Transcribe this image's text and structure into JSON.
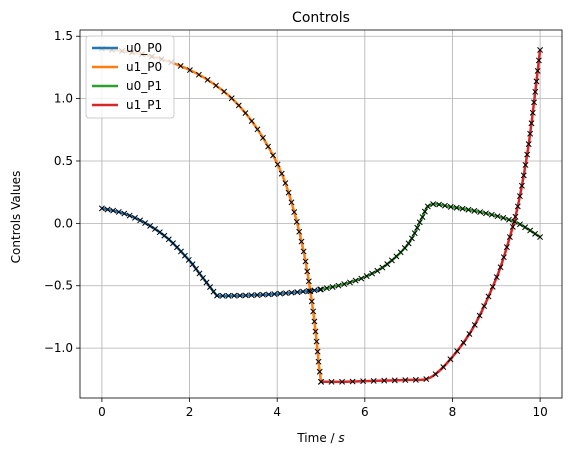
{
  "chart_data": {
    "type": "line",
    "title": "Controls",
    "xlabel_prefix": "Time / ",
    "xlabel_unit": "s",
    "ylabel": "Controls Values",
    "xlim": [
      -0.5,
      10.5
    ],
    "ylim": [
      -1.4,
      1.55
    ],
    "xticks": [
      0,
      2,
      4,
      6,
      8,
      10
    ],
    "xtick_labels": [
      "0",
      "2",
      "4",
      "6",
      "8",
      "10"
    ],
    "yticks": [
      -1.0,
      -0.5,
      0.0,
      0.5,
      1.0,
      1.5
    ],
    "ytick_labels": [
      "−1.0",
      "−0.5",
      "0.0",
      "0.5",
      "1.0",
      "1.5"
    ],
    "grid": true,
    "legend_position": "top-left",
    "marker": "x",
    "marker_color": "#000000",
    "series": [
      {
        "name": "u0_P0",
        "color": "#1f77b4",
        "x": [
          0,
          0.5,
          1.0,
          1.5,
          2.0,
          2.2,
          2.4,
          2.6,
          2.65,
          3.0,
          3.5,
          4.0,
          4.5,
          4.9,
          4.98
        ],
        "y": [
          0.12,
          0.08,
          0.0,
          -0.12,
          -0.3,
          -0.39,
          -0.48,
          -0.57,
          -0.58,
          -0.58,
          -0.575,
          -0.565,
          -0.55,
          -0.535,
          -0.53
        ]
      },
      {
        "name": "u1_P0",
        "color": "#ff7f0e",
        "x": [
          0,
          0.5,
          1.0,
          1.5,
          2.0,
          2.5,
          3.0,
          3.5,
          4.0,
          4.3,
          4.6,
          4.8,
          4.9,
          4.95,
          5.0
        ],
        "y": [
          1.4,
          1.38,
          1.35,
          1.3,
          1.23,
          1.13,
          0.99,
          0.78,
          0.48,
          0.2,
          -0.22,
          -0.65,
          -0.95,
          -1.13,
          -1.27
        ]
      },
      {
        "name": "u0_P1",
        "color": "#2ca02c",
        "x": [
          5.0,
          5.5,
          6.0,
          6.5,
          7.0,
          7.3,
          7.5,
          8.0,
          8.5,
          9.0,
          9.5,
          10.0
        ],
        "y": [
          -0.53,
          -0.49,
          -0.43,
          -0.33,
          -0.16,
          0.04,
          0.15,
          0.13,
          0.1,
          0.06,
          0.0,
          -0.11
        ]
      },
      {
        "name": "u1_P1",
        "color": "#d62728",
        "x": [
          5.0,
          5.5,
          6.0,
          6.5,
          7.0,
          7.5,
          8.0,
          8.5,
          9.0,
          9.25,
          9.5,
          9.75,
          10.0
        ],
        "y": [
          -1.27,
          -1.27,
          -1.265,
          -1.26,
          -1.255,
          -1.235,
          -1.07,
          -0.82,
          -0.44,
          -0.18,
          0.15,
          0.66,
          1.39
        ]
      }
    ]
  }
}
